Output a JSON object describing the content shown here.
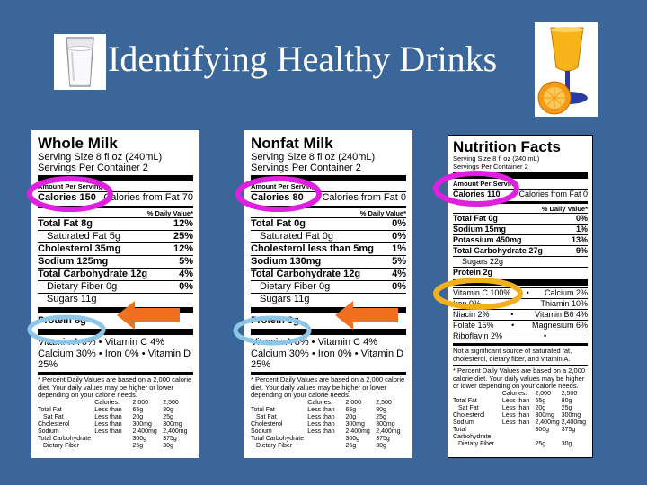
{
  "slide": {
    "title": "Identifying Healthy Drinks"
  },
  "icons": {
    "left": "milk-glass-icon",
    "right": "orange-juice-icon"
  },
  "whole_milk": {
    "name": "Whole Milk",
    "serving_size": "Serving Size 8 fl oz (240mL)",
    "servings": "Servings Per Container 2",
    "amount_per_serving": "Amount Per Serving",
    "calories": "Calories 150",
    "calories_fat": "Calories from Fat 70",
    "dv_header": "% Daily Value*",
    "rows": [
      {
        "label": "Total Fat 8g",
        "value": "12%",
        "bold": true,
        "indent": false
      },
      {
        "label": "Saturated Fat 5g",
        "value": "25%",
        "bold": false,
        "indent": true
      },
      {
        "label": "Cholesterol 35mg",
        "value": "12%",
        "bold": true,
        "indent": false
      },
      {
        "label": "Sodium 125mg",
        "value": "5%",
        "bold": true,
        "indent": false
      },
      {
        "label": "Total Carbohydrate 12g",
        "value": "4%",
        "bold": true,
        "indent": false
      },
      {
        "label": "Dietary Fiber 0g",
        "value": "0%",
        "bold": false,
        "indent": true
      },
      {
        "label": "Sugars 11g",
        "value": "",
        "bold": false,
        "indent": true
      }
    ],
    "protein": "Protein 8g",
    "vitamins_1": "Vitamin A 6%  •  Vitamin C 4%",
    "vitamins_2": "Calcium 30% • Iron 0% • Vitamin D 25%",
    "footnote": "* Percent Daily Values are based on a 2,000 calorie diet. Your daily values may be higher or lower depending on your calorie needs.",
    "table_head": [
      "",
      "Calories:",
      "2,000",
      "2,500"
    ],
    "table": [
      [
        "Total Fat",
        "Less than",
        "65g",
        "80g"
      ],
      [
        "Sat Fat",
        "Less than",
        "20g",
        "25g"
      ],
      [
        "Cholesterol",
        "Less than",
        "300mg",
        "300mg"
      ],
      [
        "Sodium",
        "Less than",
        "2,400mg",
        "2,400mg"
      ],
      [
        "Total Carbohydrate",
        "",
        "300g",
        "375g"
      ],
      [
        "Dietary Fiber",
        "",
        "25g",
        "30g"
      ]
    ]
  },
  "nonfat_milk": {
    "name": "Nonfat Milk",
    "serving_size": "Serving Size 8 fl oz (240mL)",
    "servings": "Servings Per Container 2",
    "amount_per_serving": "Amount Per Serving",
    "calories": "Calories 80",
    "calories_fat": "Calories from Fat 0",
    "dv_header": "% Daily Value*",
    "rows": [
      {
        "label": "Total Fat 0g",
        "value": "0%",
        "bold": true,
        "indent": false
      },
      {
        "label": "Saturated Fat 0g",
        "value": "0%",
        "bold": false,
        "indent": true
      },
      {
        "label": "Cholesterol less than 5mg",
        "value": "1%",
        "bold": true,
        "indent": false
      },
      {
        "label": "Sodium 130mg",
        "value": "5%",
        "bold": true,
        "indent": false
      },
      {
        "label": "Total Carbohydrate 12g",
        "value": "4%",
        "bold": true,
        "indent": false
      },
      {
        "label": "Dietary Fiber 0g",
        "value": "0%",
        "bold": false,
        "indent": true
      },
      {
        "label": "Sugars 11g",
        "value": "",
        "bold": false,
        "indent": true
      }
    ],
    "protein": "Protein 8g",
    "vitamins_1": "Vitamin A 8%  •  Vitamin C 4%",
    "vitamins_2": "Calcium 30% • Iron 0% • Vitamin D 25%",
    "footnote": "* Percent Daily Values are based on a 2,000 calorie diet. Your daily values may be higher or lower depending on your calorie needs.",
    "table_head": [
      "",
      "Calories:",
      "2,000",
      "2,500"
    ],
    "table": [
      [
        "Total Fat",
        "Less than",
        "65g",
        "80g"
      ],
      [
        "Sat Fat",
        "Less than",
        "20g",
        "25g"
      ],
      [
        "Cholesterol",
        "Less than",
        "300mg",
        "300mg"
      ],
      [
        "Sodium",
        "Less than",
        "2,400mg",
        "2,400mg"
      ],
      [
        "Total Carbohydrate",
        "",
        "300g",
        "375g"
      ],
      [
        "Dietary Fiber",
        "",
        "25g",
        "30g"
      ]
    ]
  },
  "orange_juice": {
    "name": "Nutrition Facts",
    "serving_size": "Serving Size 8 fl oz (240 mL)",
    "servings": "Servings Per Container 2",
    "amount_per_serving": "Amount Per Serving",
    "calories": "Calories 110",
    "calories_fat": "Calories from Fat 0",
    "dv_header": "% Daily Value*",
    "rows": [
      {
        "label": "Total Fat 0g",
        "value": "0%",
        "bold": true,
        "indent": false
      },
      {
        "label": "Sodium 15mg",
        "value": "1%",
        "bold": true,
        "indent": false
      },
      {
        "label": "Potassium 450mg",
        "value": "13%",
        "bold": true,
        "indent": false
      },
      {
        "label": "Total Carbohydrate 27g",
        "value": "9%",
        "bold": true,
        "indent": false
      },
      {
        "label": "Sugars 22g",
        "value": "",
        "bold": false,
        "indent": true
      }
    ],
    "protein": "Protein 2g",
    "vitamins": [
      [
        "Vitamin C 100%",
        "Calcium 2%"
      ],
      [
        "Iron 0%",
        "Thiamin 10%"
      ],
      [
        "Niacin 2%",
        "Vitamin B6 4%"
      ],
      [
        "Folate 15%",
        "Magnesium 6%"
      ],
      [
        "Riboflavin 2%",
        ""
      ]
    ],
    "note": "Not a significant source of saturated fat, cholesterol, dietary fiber, and vitamin A.",
    "footnote": "* Percent Daily Values are based on a 2,000 calorie diet. Your daily values may be higher or lower depending on your calorie needs.",
    "table_head": [
      "",
      "Calories:",
      "2,000",
      "2,500"
    ],
    "table": [
      [
        "Total Fat",
        "Less than",
        "65g",
        "80g"
      ],
      [
        "Sat Fat",
        "Less than",
        "20g",
        "25g"
      ],
      [
        "Cholesterol",
        "Less than",
        "300mg",
        "300mg"
      ],
      [
        "Sodium",
        "Less than",
        "2,400mg",
        "2,400mg"
      ],
      [
        "Total Carbohydrate",
        "",
        "300g",
        "375g"
      ],
      [
        "Dietary Fiber",
        "",
        "25g",
        "30g"
      ]
    ]
  },
  "colors": {
    "background": "#3a6699",
    "calorie_circle": "#e020e0",
    "protein_circle": "#8ec6e8",
    "vitamin_circle": "#f0b020",
    "arrow": "#f07020"
  }
}
